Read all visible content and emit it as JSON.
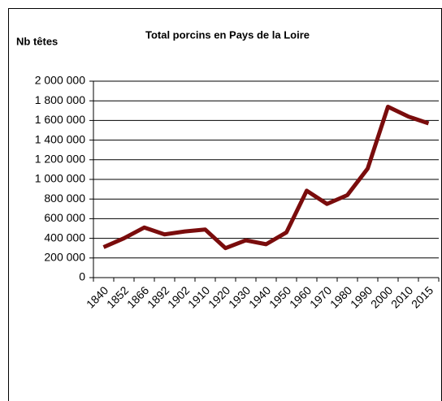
{
  "chart_data": {
    "type": "line",
    "title": "Total porcins en Pays de la Loire",
    "y_label": "Nb têtes",
    "categories": [
      "1840",
      "1852",
      "1866",
      "1892",
      "1902",
      "1910",
      "1920",
      "1930",
      "1940",
      "1950",
      "1960",
      "1970",
      "1980",
      "1990",
      "2000",
      "2010",
      "2015"
    ],
    "series": [
      {
        "color": "#7a0c0c",
        "values": [
          310000,
          400000,
          510000,
          440000,
          470000,
          490000,
          300000,
          380000,
          340000,
          460000,
          885000,
          750000,
          840000,
          1110000,
          1740000,
          1640000,
          1570000
        ]
      }
    ],
    "ylim": [
      0,
      2000000
    ],
    "yticks": [
      0,
      {
        "value": 200000,
        "label": "200 000"
      },
      {
        "value": 400000,
        "label": "400 000"
      },
      {
        "value": 600000,
        "label": "600 000"
      },
      {
        "value": 800000,
        "label": "800 000"
      },
      {
        "value": 1000000,
        "label": "1 000 000"
      },
      {
        "value": 1200000,
        "label": "1 200 000"
      },
      {
        "value": 1400000,
        "label": "1 400 000"
      },
      {
        "value": 1600000,
        "label": "1 600 000"
      },
      {
        "value": 1800000,
        "label": "1 800 000"
      },
      {
        "value": 2000000,
        "label": "2 000 000"
      }
    ],
    "grid": true
  }
}
